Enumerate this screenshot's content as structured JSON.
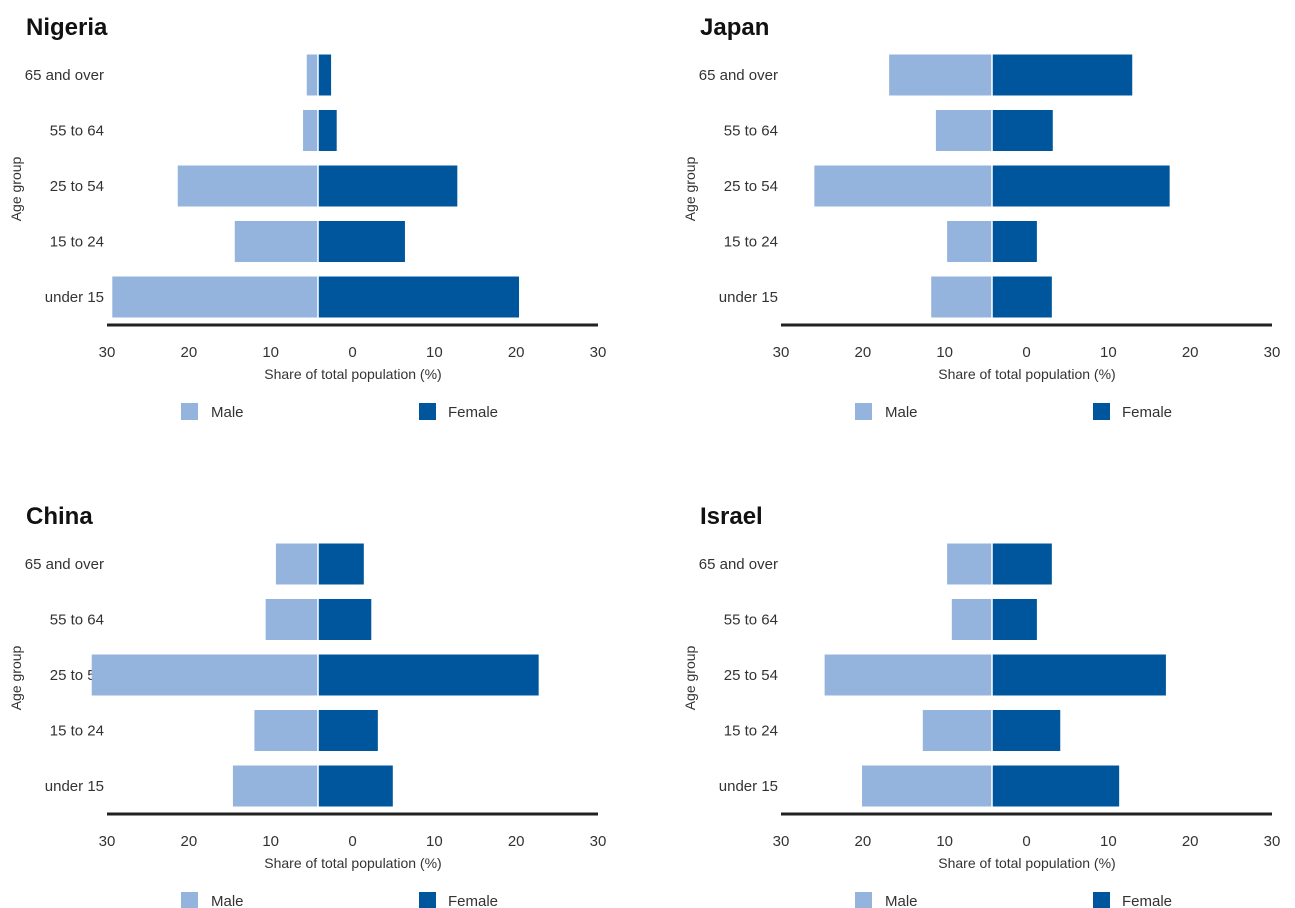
{
  "colors": {
    "male": "#94b3dd",
    "female": "#00569c",
    "axis": "#222222"
  },
  "chart_data": [
    {
      "type": "bar",
      "orientation": "horizontal",
      "title": "Nigeria",
      "categories": [
        "65 and over",
        "55 to 64",
        "25 to 54",
        "15 to 24",
        "under 15"
      ],
      "series": [
        {
          "name": "Male",
          "values": [
            1.2,
            1.6,
            15.0,
            8.9,
            22.0
          ]
        },
        {
          "name": "Female",
          "values": [
            1.4,
            2.0,
            14.9,
            9.3,
            21.5
          ]
        }
      ],
      "xlabel": "Share of total population (%)",
      "ylabel": "Age group",
      "xlim": [
        -30,
        30
      ],
      "xticks": [
        "30",
        "20",
        "10",
        "0",
        "10",
        "20",
        "30"
      ],
      "legend": "bottom"
    },
    {
      "type": "bar",
      "orientation": "horizontal",
      "title": "Japan",
      "categories": [
        "65 and over",
        "55 to 64",
        "25 to 54",
        "15 to 24",
        "under 15"
      ],
      "series": [
        {
          "name": "Male",
          "values": [
            11.0,
            6.0,
            19.0,
            4.8,
            6.5
          ]
        },
        {
          "name": "Female",
          "values": [
            15.0,
            6.5,
            19.0,
            4.8,
            6.4
          ]
        }
      ],
      "xlabel": "Share of total population (%)",
      "ylabel": "Age group",
      "xlim": [
        -30,
        30
      ],
      "xticks": [
        "30",
        "20",
        "10",
        "0",
        "10",
        "20",
        "30"
      ],
      "legend": "bottom"
    },
    {
      "type": "bar",
      "orientation": "horizontal",
      "title": "China",
      "categories": [
        "65 and over",
        "55 to 64",
        "25 to 54",
        "15 to 24",
        "under 15"
      ],
      "series": [
        {
          "name": "Male",
          "values": [
            4.5,
            5.6,
            24.2,
            6.8,
            9.1
          ]
        },
        {
          "name": "Female",
          "values": [
            4.9,
            5.7,
            23.6,
            6.4,
            8.0
          ]
        }
      ],
      "xlabel": "Share of total population (%)",
      "ylabel": "Age group",
      "xlim": [
        -30,
        30
      ],
      "xticks": [
        "30",
        "20",
        "10",
        "0",
        "10",
        "20",
        "30"
      ],
      "legend": "bottom"
    },
    {
      "type": "bar",
      "orientation": "horizontal",
      "title": "Israel",
      "categories": [
        "65 and over",
        "55 to 64",
        "25 to 54",
        "15 to 24",
        "under 15"
      ],
      "series": [
        {
          "name": "Male",
          "values": [
            4.8,
            4.3,
            17.9,
            7.4,
            13.9
          ]
        },
        {
          "name": "Female",
          "values": [
            6.4,
            4.8,
            18.6,
            7.3,
            13.6
          ]
        }
      ],
      "xlabel": "Share of total population (%)",
      "ylabel": "Age group",
      "xlim": [
        -30,
        30
      ],
      "xticks": [
        "30",
        "20",
        "10",
        "0",
        "10",
        "20",
        "30"
      ],
      "legend": "bottom"
    }
  ]
}
